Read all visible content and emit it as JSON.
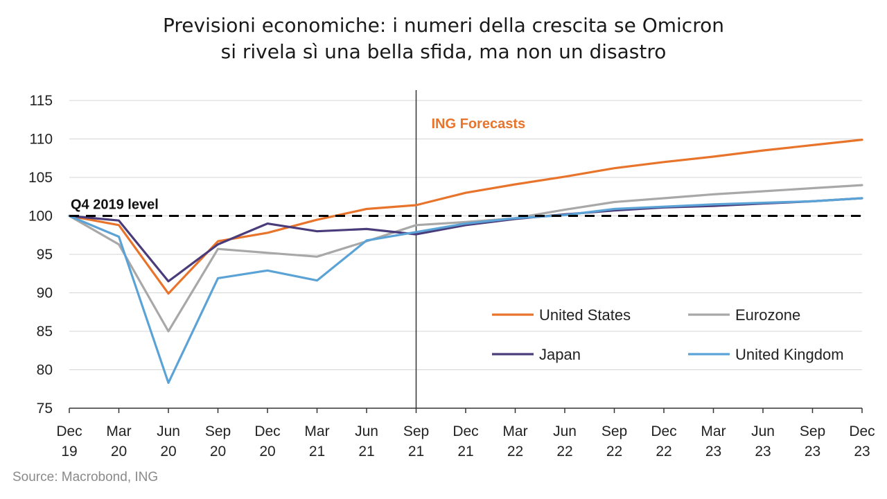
{
  "title_line1": "Previsioni economiche: i numeri della crescita se Omicron",
  "title_line2": "si rivela sì una bella sfida, ma non un disastro",
  "source": "Source: Macrobond, ING",
  "chart_data": {
    "type": "line",
    "x": [
      [
        "Dec",
        "19"
      ],
      [
        "Mar",
        "20"
      ],
      [
        "Jun",
        "20"
      ],
      [
        "Sep",
        "20"
      ],
      [
        "Dec",
        "20"
      ],
      [
        "Mar",
        "21"
      ],
      [
        "Jun",
        "21"
      ],
      [
        "Sep",
        "21"
      ],
      [
        "Dec",
        "21"
      ],
      [
        "Mar",
        "22"
      ],
      [
        "Jun",
        "22"
      ],
      [
        "Sep",
        "22"
      ],
      [
        "Dec",
        "22"
      ],
      [
        "Mar",
        "23"
      ],
      [
        "Jun",
        "23"
      ],
      [
        "Sep",
        "23"
      ],
      [
        "Dec",
        "23"
      ]
    ],
    "ylim": [
      75,
      115
    ],
    "yticks": [
      75,
      80,
      85,
      90,
      95,
      100,
      105,
      110,
      115
    ],
    "grid": true,
    "reference_line": {
      "value": 100,
      "label": "Q4 2019 level"
    },
    "forecast_start": {
      "x_label": "Sep 21",
      "label": "ING Forecasts"
    },
    "legend_position": "bottom-right",
    "series": [
      {
        "name": "United States",
        "color": "#e8742c",
        "values": [
          100,
          98.8,
          89.9,
          96.7,
          97.8,
          99.5,
          100.9,
          101.4,
          103.0,
          104.1,
          105.1,
          106.2,
          107.0,
          107.7,
          108.5,
          109.2,
          109.9
        ]
      },
      {
        "name": "Eurozone",
        "color": "#a8a8a8",
        "values": [
          100,
          96.3,
          85.0,
          95.7,
          95.2,
          94.7,
          96.7,
          98.8,
          99.2,
          99.7,
          100.8,
          101.8,
          102.3,
          102.8,
          103.2,
          103.6,
          104.0
        ]
      },
      {
        "name": "Japan",
        "color": "#4a3b7a",
        "values": [
          100,
          99.4,
          91.5,
          96.3,
          99.0,
          98.0,
          98.3,
          97.6,
          98.8,
          99.6,
          100.2,
          100.7,
          101.1,
          101.3,
          101.6,
          101.9,
          102.3
        ]
      },
      {
        "name": "United Kingdom",
        "color": "#5ba3d6",
        "values": [
          100,
          97.3,
          78.3,
          91.9,
          92.9,
          91.6,
          96.8,
          97.9,
          99.0,
          99.7,
          100.1,
          100.9,
          101.2,
          101.5,
          101.7,
          101.9,
          102.3
        ]
      }
    ]
  }
}
